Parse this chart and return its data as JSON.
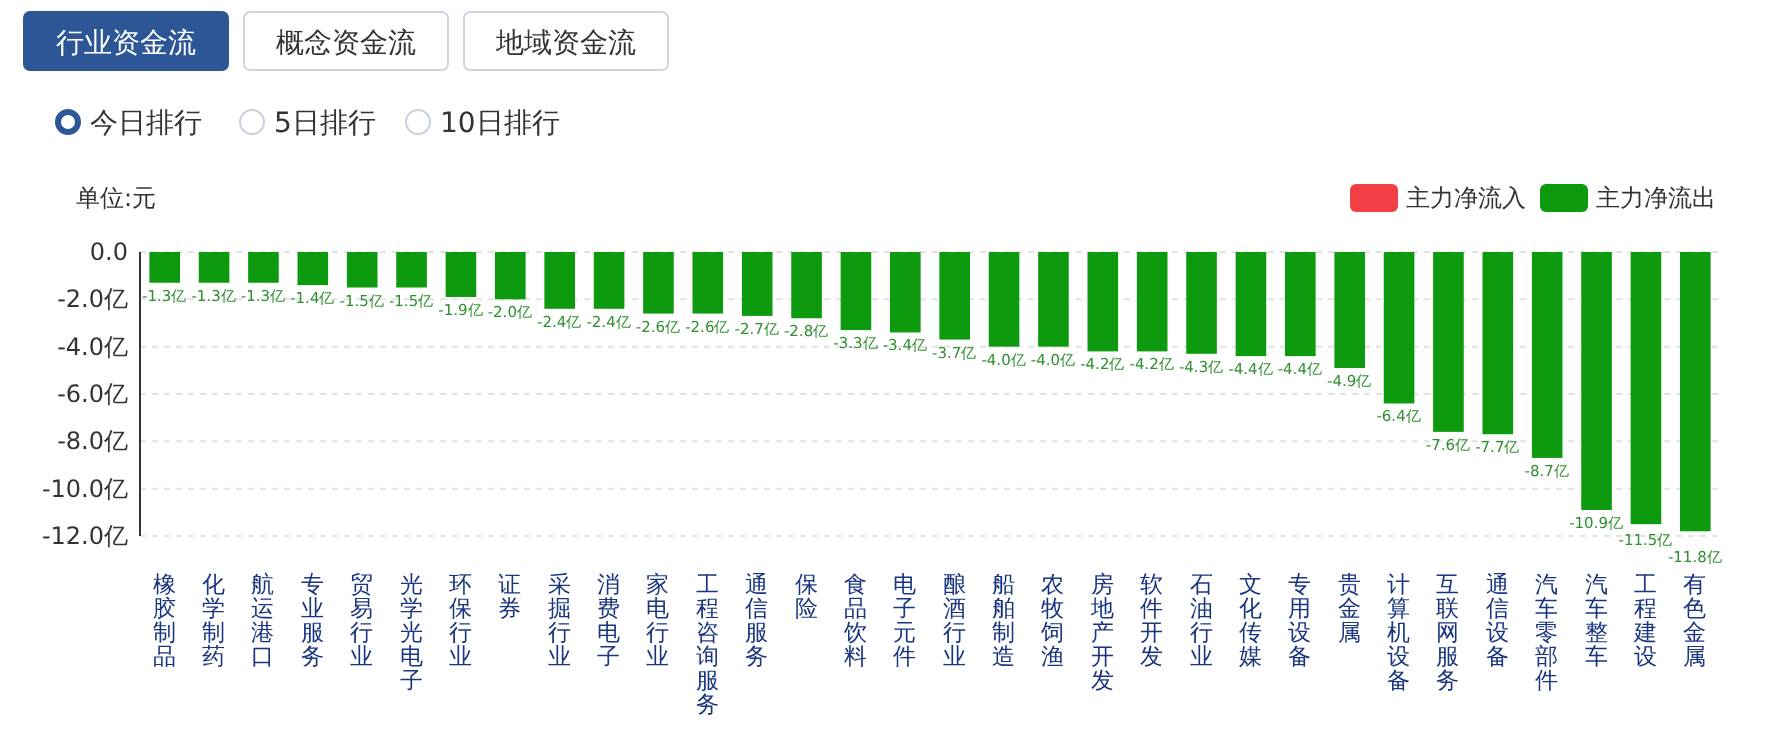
{
  "chart_data": {
    "type": "bar",
    "ylabel": "单位:元",
    "annotations": [
      "行业资金流",
      "概念资金流",
      "地域资金流",
      "今日排行",
      "5日排行",
      "10日排行"
    ],
    "categories": [
      "橡胶制品",
      "化学制药",
      "航运港口",
      "专业服务",
      "贸易行业",
      "光学光电子",
      "环保行业",
      "证券",
      "采掘行业",
      "消费电子",
      "家电行业",
      "工程咨询服务",
      "通信服务",
      "保险",
      "食品饮料",
      "电子元件",
      "酿酒行业",
      "船舶制造",
      "农牧饲渔",
      "房地产开发",
      "软件开发",
      "石油行业",
      "文化传媒",
      "专用设备",
      "贵金属",
      "计算机设备",
      "互联网服务",
      "通信设备",
      "汽车零部件",
      "汽车整车",
      "工程建设",
      "有色金属"
    ],
    "series": [
      {
        "name": "主力净流入",
        "color": "#f23f43",
        "values": [
          null,
          null,
          null,
          null,
          null,
          null,
          null,
          null,
          null,
          null,
          null,
          null,
          null,
          null,
          null,
          null,
          null,
          null,
          null,
          null,
          null,
          null,
          null,
          null,
          null,
          null,
          null,
          null,
          null,
          null,
          null,
          null
        ]
      },
      {
        "name": "主力净流出",
        "color": "#0e9a0e",
        "values": [
          -1.3,
          -1.3,
          -1.3,
          -1.4,
          -1.5,
          -1.5,
          -1.9,
          -2.0,
          -2.4,
          -2.4,
          -2.6,
          -2.6,
          -2.7,
          -2.8,
          -3.3,
          -3.4,
          -3.7,
          -4.0,
          -4.0,
          -4.2,
          -4.2,
          -4.3,
          -4.4,
          -4.4,
          -4.9,
          -6.4,
          -7.6,
          -7.7,
          -8.7,
          -10.9,
          -11.5,
          -11.8
        ],
        "value_labels": [
          "-1.3亿",
          "-1.3亿",
          "-1.3亿",
          "-1.4亿",
          "-1.5亿",
          "-1.5亿",
          "-1.9亿",
          "-2.0亿",
          "-2.4亿",
          "-2.4亿",
          "-2.6亿",
          "-2.6亿",
          "-2.7亿",
          "-2.8亿",
          "-3.3亿",
          "-3.4亿",
          "-3.7亿",
          "-4.0亿",
          "-4.0亿",
          "-4.2亿",
          "-4.2亿",
          "-4.3亿",
          "-4.4亿",
          "-4.4亿",
          "-4.9亿",
          "-6.4亿",
          "-7.6亿",
          "-7.7亿",
          "-8.7亿",
          "-10.9亿",
          "-11.5亿",
          "-11.8亿"
        ]
      }
    ],
    "ylim": [
      -12,
      0
    ],
    "yticks": [
      {
        "value": 0,
        "label": "0.0"
      },
      {
        "value": -2,
        "label": "-2.0亿"
      },
      {
        "value": -4,
        "label": "-4.0亿"
      },
      {
        "value": -6,
        "label": "-6.0亿"
      },
      {
        "value": -8,
        "label": "-8.0亿"
      },
      {
        "value": -10,
        "label": "-10.0亿"
      },
      {
        "value": -12,
        "label": "-12.0亿"
      }
    ],
    "grid": "y",
    "legend": "top right"
  }
}
